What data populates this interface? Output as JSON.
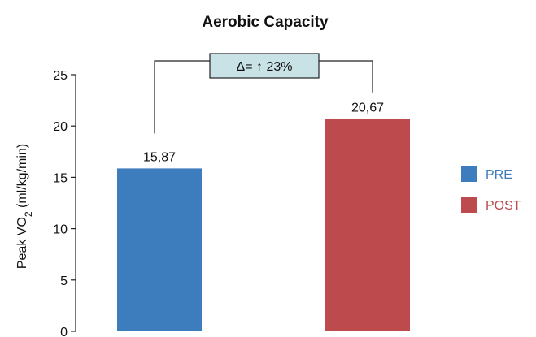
{
  "chart_data": {
    "type": "bar",
    "title": "Aerobic Capacity",
    "ylabel": {
      "prefix": "Peak VO",
      "subscript": "2",
      "suffix": " (ml/kg/min)"
    },
    "ylim": [
      0,
      25
    ],
    "yticks": [
      0,
      5,
      10,
      15,
      20,
      25
    ],
    "series": [
      {
        "name": "PRE",
        "value": 15.87,
        "label": "15,87",
        "color": "#3d7dbd"
      },
      {
        "name": "POST",
        "value": 20.67,
        "label": "20,67",
        "color": "#bd4b4d"
      }
    ],
    "annotation": {
      "text": "Δ= ↑ 23%",
      "fill": "#c8e2e6"
    },
    "legend": "right",
    "grid": false
  }
}
